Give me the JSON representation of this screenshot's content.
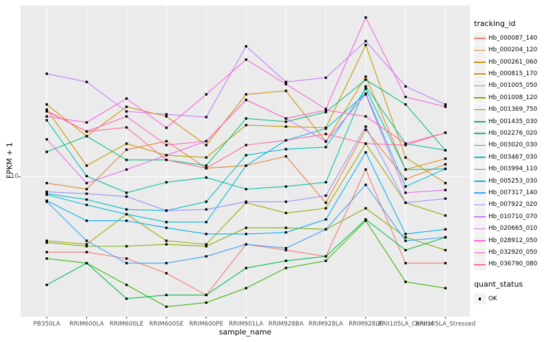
{
  "figure": {
    "y_axis": {
      "title": "FPKM + 1",
      "tick_label": "10"
    },
    "x_axis": {
      "title": "sample_name"
    },
    "legend": {
      "tracking_title": "tracking_id",
      "quant_title": "quant_status",
      "quant_ok_label": "OK"
    },
    "colors": {
      "panel_bg": "#EBEBEB",
      "grid": "#FFFFFF",
      "point": "#000000",
      "tick_text": "#4D4D4D",
      "tick_mark": "#333333",
      "legend_key_bg": "#F2F2F2"
    }
  },
  "chart_data": {
    "type": "line",
    "title": "",
    "xlabel": "sample_name",
    "ylabel": "FPKM + 1",
    "y_scale": "log10",
    "y_breaks": [
      10
    ],
    "ylim": [
      1.5,
      100
    ],
    "grid": true,
    "legend_position": "right",
    "legend_title": "tracking_id",
    "quant_status": {
      "title": "quant_status",
      "label": "OK",
      "marker": "black-square"
    },
    "categories": [
      "PB350LA",
      "RRIM600LA",
      "RRIM600LE",
      "RRIM600SE",
      "RRIM600PE",
      "RRIM901LA",
      "RRIM928BA",
      "RRIM928LA",
      "RRIM928LE",
      "RRII105LA_Control",
      "RRII105LA_Stressed"
    ],
    "series": [
      {
        "name": "Hb_000087_140",
        "color": "#F8766D",
        "values": [
          3.7,
          3.7,
          3.4,
          2.8,
          2.1,
          4.1,
          3.8,
          3.5,
          11.0,
          3.2,
          3.2
        ]
      },
      {
        "name": "Hb_000204_120",
        "color": "#EA8331",
        "values": [
          9.2,
          8.5,
          14.3,
          16.0,
          11.2,
          11.6,
          13.1,
          7.1,
          18.6,
          9.7,
          11.8
        ]
      },
      {
        "name": "Hb_000261_060",
        "color": "#D89000",
        "values": [
          26,
          17.1,
          25.2,
          22.2,
          15.2,
          29.7,
          31.1,
          15.9,
          37.5,
          11.0,
          12.7
        ]
      },
      {
        "name": "Hb_000815_170",
        "color": "#C09B00",
        "values": [
          24.3,
          11.6,
          15.5,
          13.3,
          12.9,
          19.8,
          19.4,
          19.1,
          57,
          12.9,
          9.2
        ]
      },
      {
        "name": "Hb_001005_050",
        "color": "#A3A500",
        "values": [
          4.3,
          4.1,
          6.1,
          4.3,
          4.1,
          7.1,
          6.2,
          6.6,
          15.5,
          7.1,
          6.0
        ]
      },
      {
        "name": "Hb_001008_120",
        "color": "#7CAE00",
        "values": [
          4.2,
          4.0,
          4.0,
          4.1,
          4.0,
          5.1,
          5.1,
          5.0,
          6.6,
          4.5,
          3.8
        ]
      },
      {
        "name": "Hb_001369_750",
        "color": "#39B600",
        "values": [
          3.4,
          3.2,
          2.4,
          1.8,
          1.9,
          2.3,
          3.0,
          3.3,
          5.6,
          2.5,
          2.3
        ]
      },
      {
        "name": "Hb_001435_030",
        "color": "#00BB4E",
        "values": [
          2.4,
          3.2,
          2.0,
          2.1,
          2.1,
          3.0,
          3.3,
          3.5,
          5.7,
          3.8,
          4.5
        ]
      },
      {
        "name": "Hb_002276_020",
        "color": "#00BF7D",
        "values": [
          13.9,
          17.1,
          12.5,
          12.5,
          11.6,
          21.6,
          20.7,
          23.5,
          36,
          26,
          14.2
        ]
      },
      {
        "name": "Hb_003020_030",
        "color": "#00C1A3",
        "values": [
          21.1,
          10.1,
          8.1,
          9.3,
          9.9,
          8.5,
          8.8,
          9.3,
          33,
          15.5,
          14.2
        ]
      },
      {
        "name": "Hb_003467_030",
        "color": "#00BFC4",
        "values": [
          8.0,
          7.4,
          6.5,
          6.4,
          7.2,
          13.3,
          14.4,
          14.8,
          32,
          11.0,
          11.1
        ]
      },
      {
        "name": "Hb_003994_110",
        "color": "#00BAE0",
        "values": [
          7.9,
          6.9,
          6.1,
          5.5,
          5.5,
          11.6,
          16.2,
          18.9,
          30,
          8.8,
          11.1
        ]
      },
      {
        "name": "Hb_005253_030",
        "color": "#00B0F6",
        "values": [
          7.3,
          5.6,
          5.6,
          5.1,
          4.7,
          4.7,
          4.8,
          5.7,
          13.8,
          4.7,
          5.0
        ]
      },
      {
        "name": "Hb_007317_140",
        "color": "#35A2FF",
        "values": [
          7.2,
          4.3,
          3.2,
          3.2,
          3.5,
          4.1,
          3.9,
          5.0,
          9.0,
          4.3,
          4.5
        ]
      },
      {
        "name": "Hb_007922_020",
        "color": "#9590FF",
        "values": [
          8.2,
          8.0,
          7.7,
          6.4,
          6.5,
          7.2,
          7.2,
          7.8,
          19.4,
          7.1,
          7.5
        ]
      },
      {
        "name": "Hb_010710_070",
        "color": "#C77CFF",
        "values": [
          39,
          35,
          23.7,
          22.8,
          22.0,
          56,
          35,
          37,
          60,
          33,
          26
        ]
      },
      {
        "name": "Hb_020665_010",
        "color": "#E76BF3",
        "values": [
          16.4,
          9.2,
          11.0,
          13.3,
          16.0,
          27.6,
          21.6,
          16.0,
          29.7,
          8.1,
          8.4
        ]
      },
      {
        "name": "Hb_028912_050",
        "color": "#FA62DB",
        "values": [
          22.2,
          20.5,
          28.1,
          19.1,
          29.7,
          47,
          34,
          24.5,
          82,
          28.7,
          25.2
        ]
      },
      {
        "name": "Hb_032920_050",
        "color": "#FF62BC",
        "values": [
          23.9,
          18.2,
          22.2,
          15.2,
          16.0,
          27.6,
          21.6,
          24.1,
          22.2,
          15.5,
          17.9
        ]
      },
      {
        "name": "Hb_036790_080",
        "color": "#FF6A98",
        "values": [
          23.7,
          18.2,
          19.2,
          12.5,
          11.2,
          15.2,
          16.2,
          17.6,
          15.5,
          15.2,
          17.9
        ]
      }
    ]
  }
}
